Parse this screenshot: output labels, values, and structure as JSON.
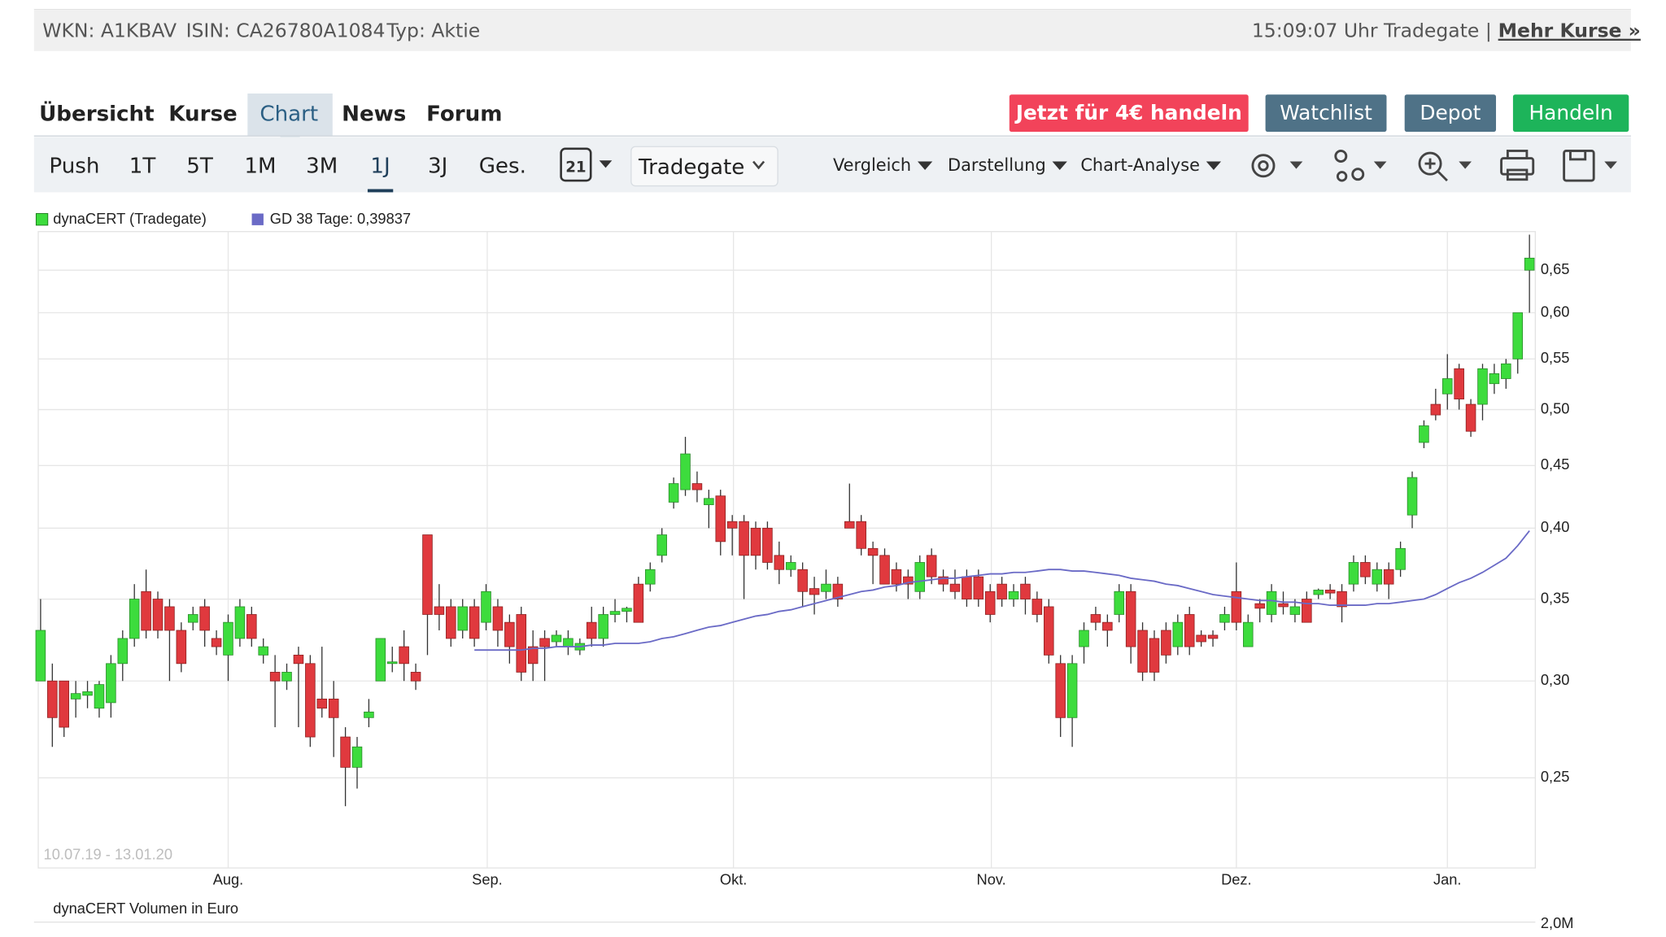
{
  "header": {
    "wkn": "WKN: A1KBAV",
    "isin": "ISIN: CA26780A1084",
    "type": "Typ: Aktie",
    "time": "15:09:07 Uhr Tradegate |",
    "more": "Mehr Kurse »"
  },
  "tabs": [
    "Übersicht",
    "Kurse",
    "Chart",
    "News",
    "Forum"
  ],
  "actions": [
    "Jetzt für 4€ handeln",
    "Watchlist",
    "Depot",
    "Handeln"
  ],
  "periods": [
    "Push",
    "1T",
    "5T",
    "1M",
    "3M",
    "1J",
    "3J",
    "Ges."
  ],
  "calendar": "21",
  "exchange": "Tradegate",
  "menus": [
    "Vergleich",
    "Darstellung",
    "Chart-Analyse"
  ],
  "chart": {
    "type": "candlestick",
    "log_scale": true,
    "grid": true,
    "legend": [
      "dynaCERT (Tradegate)",
      "GD 38 Tage: 0,39837"
    ],
    "range": "10.07.19 - 13.01.20",
    "ylim": [
      0.211,
      0.699
    ],
    "yticks": [
      {
        "value": 0.25,
        "label": "0,25"
      },
      {
        "value": 0.3,
        "label": "0,30"
      },
      {
        "value": 0.35,
        "label": "0,35"
      },
      {
        "value": 0.4,
        "label": "0,40"
      },
      {
        "value": 0.45,
        "label": "0,45"
      },
      {
        "value": 0.5,
        "label": "0,50"
      },
      {
        "value": 0.55,
        "label": "0,55"
      },
      {
        "value": 0.6,
        "label": "0,60"
      },
      {
        "value": 0.65,
        "label": "0,65"
      }
    ],
    "xlim": [
      -0.2,
      127.5
    ],
    "xticks": [
      {
        "value": 16,
        "label": "Aug."
      },
      {
        "value": 38.1,
        "label": "Sep."
      },
      {
        "value": 59.1,
        "label": "Okt."
      },
      {
        "value": 81.1,
        "label": "Nov."
      },
      {
        "value": 102,
        "label": "Dez."
      },
      {
        "value": 120,
        "label": "Jan."
      }
    ],
    "up_color": "#3ddc3d",
    "down_color": "#e0393e",
    "candles": [
      [
        0.3,
        0.35,
        0.3,
        0.33
      ],
      [
        0.3,
        0.31,
        0.265,
        0.28
      ],
      [
        0.3,
        0.3,
        0.27,
        0.275
      ],
      [
        0.29,
        0.3,
        0.28,
        0.293
      ],
      [
        0.292,
        0.3,
        0.285,
        0.294
      ],
      [
        0.285,
        0.3,
        0.28,
        0.298
      ],
      [
        0.288,
        0.315,
        0.28,
        0.31
      ],
      [
        0.31,
        0.33,
        0.3,
        0.325
      ],
      [
        0.325,
        0.36,
        0.32,
        0.35
      ],
      [
        0.355,
        0.37,
        0.325,
        0.33
      ],
      [
        0.35,
        0.355,
        0.325,
        0.33
      ],
      [
        0.345,
        0.35,
        0.3,
        0.33
      ],
      [
        0.33,
        0.335,
        0.305,
        0.31
      ],
      [
        0.335,
        0.345,
        0.33,
        0.34
      ],
      [
        0.345,
        0.35,
        0.32,
        0.33
      ],
      [
        0.325,
        0.33,
        0.315,
        0.32
      ],
      [
        0.315,
        0.34,
        0.3,
        0.335
      ],
      [
        0.325,
        0.35,
        0.32,
        0.345
      ],
      [
        0.34,
        0.345,
        0.32,
        0.325
      ],
      [
        0.315,
        0.325,
        0.31,
        0.32
      ],
      [
        0.305,
        0.315,
        0.275,
        0.3
      ],
      [
        0.3,
        0.31,
        0.295,
        0.305
      ],
      [
        0.315,
        0.32,
        0.275,
        0.31
      ],
      [
        0.31,
        0.315,
        0.265,
        0.27
      ],
      [
        0.29,
        0.32,
        0.28,
        0.285
      ],
      [
        0.29,
        0.3,
        0.26,
        0.28
      ],
      [
        0.27,
        0.275,
        0.237,
        0.255
      ],
      [
        0.255,
        0.27,
        0.245,
        0.265
      ],
      [
        0.28,
        0.29,
        0.275,
        0.283
      ],
      [
        0.3,
        0.325,
        0.3,
        0.325
      ],
      [
        0.31,
        0.32,
        0.305,
        0.311
      ],
      [
        0.32,
        0.33,
        0.3,
        0.31
      ],
      [
        0.305,
        0.31,
        0.295,
        0.3
      ],
      [
        0.395,
        0.395,
        0.315,
        0.34
      ],
      [
        0.345,
        0.36,
        0.33,
        0.34
      ],
      [
        0.345,
        0.35,
        0.32,
        0.325
      ],
      [
        0.33,
        0.35,
        0.325,
        0.345
      ],
      [
        0.345,
        0.35,
        0.32,
        0.325
      ],
      [
        0.335,
        0.36,
        0.33,
        0.355
      ],
      [
        0.345,
        0.35,
        0.32,
        0.33
      ],
      [
        0.335,
        0.34,
        0.31,
        0.32
      ],
      [
        0.34,
        0.345,
        0.3,
        0.305
      ],
      [
        0.32,
        0.33,
        0.3,
        0.31
      ],
      [
        0.325,
        0.33,
        0.3,
        0.32
      ],
      [
        0.323,
        0.33,
        0.32,
        0.327
      ],
      [
        0.32,
        0.33,
        0.315,
        0.325
      ],
      [
        0.318,
        0.325,
        0.315,
        0.322
      ],
      [
        0.335,
        0.345,
        0.32,
        0.325
      ],
      [
        0.325,
        0.345,
        0.32,
        0.34
      ],
      [
        0.34,
        0.35,
        0.335,
        0.342
      ],
      [
        0.342,
        0.345,
        0.335,
        0.344
      ],
      [
        0.36,
        0.365,
        0.335,
        0.335
      ],
      [
        0.36,
        0.375,
        0.355,
        0.37
      ],
      [
        0.38,
        0.4,
        0.375,
        0.395
      ],
      [
        0.42,
        0.44,
        0.415,
        0.435
      ],
      [
        0.43,
        0.475,
        0.425,
        0.46
      ],
      [
        0.435,
        0.445,
        0.42,
        0.43
      ],
      [
        0.418,
        0.43,
        0.4,
        0.423
      ],
      [
        0.425,
        0.43,
        0.38,
        0.39
      ],
      [
        0.405,
        0.41,
        0.38,
        0.4
      ],
      [
        0.405,
        0.41,
        0.35,
        0.38
      ],
      [
        0.4,
        0.405,
        0.37,
        0.38
      ],
      [
        0.4,
        0.405,
        0.37,
        0.375
      ],
      [
        0.38,
        0.39,
        0.36,
        0.37
      ],
      [
        0.37,
        0.38,
        0.365,
        0.375
      ],
      [
        0.37,
        0.375,
        0.345,
        0.355
      ],
      [
        0.357,
        0.365,
        0.34,
        0.353
      ],
      [
        0.355,
        0.37,
        0.35,
        0.36
      ],
      [
        0.36,
        0.365,
        0.345,
        0.35
      ],
      [
        0.405,
        0.435,
        0.4,
        0.4
      ],
      [
        0.405,
        0.41,
        0.38,
        0.385
      ],
      [
        0.385,
        0.39,
        0.36,
        0.38
      ],
      [
        0.38,
        0.385,
        0.36,
        0.36
      ],
      [
        0.37,
        0.375,
        0.355,
        0.36
      ],
      [
        0.365,
        0.37,
        0.35,
        0.36
      ],
      [
        0.355,
        0.38,
        0.35,
        0.375
      ],
      [
        0.38,
        0.385,
        0.36,
        0.365
      ],
      [
        0.365,
        0.37,
        0.355,
        0.36
      ],
      [
        0.36,
        0.37,
        0.35,
        0.355
      ],
      [
        0.365,
        0.37,
        0.345,
        0.35
      ],
      [
        0.365,
        0.37,
        0.345,
        0.35
      ],
      [
        0.355,
        0.36,
        0.335,
        0.34
      ],
      [
        0.36,
        0.365,
        0.345,
        0.35
      ],
      [
        0.35,
        0.36,
        0.345,
        0.355
      ],
      [
        0.36,
        0.365,
        0.34,
        0.35
      ],
      [
        0.35,
        0.355,
        0.335,
        0.34
      ],
      [
        0.345,
        0.35,
        0.31,
        0.315
      ],
      [
        0.31,
        0.315,
        0.27,
        0.28
      ],
      [
        0.28,
        0.315,
        0.265,
        0.31
      ],
      [
        0.32,
        0.335,
        0.31,
        0.33
      ],
      [
        0.34,
        0.345,
        0.33,
        0.335
      ],
      [
        0.335,
        0.34,
        0.32,
        0.33
      ],
      [
        0.34,
        0.36,
        0.335,
        0.355
      ],
      [
        0.355,
        0.36,
        0.31,
        0.32
      ],
      [
        0.33,
        0.335,
        0.3,
        0.305
      ],
      [
        0.325,
        0.33,
        0.3,
        0.305
      ],
      [
        0.33,
        0.335,
        0.31,
        0.315
      ],
      [
        0.32,
        0.34,
        0.315,
        0.335
      ],
      [
        0.34,
        0.345,
        0.315,
        0.32
      ],
      [
        0.327,
        0.33,
        0.32,
        0.323
      ],
      [
        0.327,
        0.33,
        0.32,
        0.325
      ],
      [
        0.335,
        0.345,
        0.33,
        0.34
      ],
      [
        0.355,
        0.375,
        0.33,
        0.335
      ],
      [
        0.32,
        0.34,
        0.32,
        0.335
      ],
      [
        0.347,
        0.35,
        0.335,
        0.344
      ],
      [
        0.34,
        0.36,
        0.335,
        0.355
      ],
      [
        0.347,
        0.355,
        0.34,
        0.345
      ],
      [
        0.34,
        0.35,
        0.335,
        0.345
      ],
      [
        0.35,
        0.355,
        0.335,
        0.335
      ],
      [
        0.353,
        0.357,
        0.35,
        0.356
      ],
      [
        0.356,
        0.36,
        0.35,
        0.354
      ],
      [
        0.355,
        0.36,
        0.335,
        0.345
      ],
      [
        0.36,
        0.38,
        0.355,
        0.375
      ],
      [
        0.375,
        0.38,
        0.36,
        0.365
      ],
      [
        0.36,
        0.375,
        0.355,
        0.37
      ],
      [
        0.37,
        0.375,
        0.35,
        0.36
      ],
      [
        0.37,
        0.39,
        0.365,
        0.385
      ],
      [
        0.41,
        0.445,
        0.4,
        0.44
      ],
      [
        0.47,
        0.49,
        0.465,
        0.485
      ],
      [
        0.505,
        0.52,
        0.49,
        0.495
      ],
      [
        0.515,
        0.555,
        0.5,
        0.53
      ],
      [
        0.54,
        0.545,
        0.5,
        0.51
      ],
      [
        0.505,
        0.51,
        0.475,
        0.48
      ],
      [
        0.505,
        0.545,
        0.49,
        0.54
      ],
      [
        0.525,
        0.545,
        0.515,
        0.535
      ],
      [
        0.53,
        0.55,
        0.52,
        0.545
      ],
      [
        0.55,
        0.6,
        0.535,
        0.6
      ],
      [
        0.65,
        0.695,
        0.6,
        0.665
      ]
    ],
    "ma": {
      "color": "#6a6ac6",
      "values": [
        null,
        null,
        null,
        null,
        null,
        null,
        null,
        null,
        null,
        null,
        null,
        null,
        null,
        null,
        null,
        null,
        null,
        null,
        null,
        null,
        null,
        null,
        null,
        null,
        null,
        null,
        null,
        null,
        null,
        null,
        null,
        null,
        null,
        null,
        null,
        null,
        null,
        0.318,
        0.318,
        0.318,
        0.318,
        0.318,
        0.319,
        0.319,
        0.32,
        0.32,
        0.32,
        0.321,
        0.321,
        0.322,
        0.322,
        0.322,
        0.323,
        0.325,
        0.326,
        0.328,
        0.33,
        0.332,
        0.333,
        0.335,
        0.337,
        0.339,
        0.34,
        0.342,
        0.343,
        0.345,
        0.347,
        0.349,
        0.351,
        0.353,
        0.355,
        0.356,
        0.358,
        0.359,
        0.361,
        0.362,
        0.363,
        0.364,
        0.364,
        0.365,
        0.366,
        0.367,
        0.367,
        0.368,
        0.368,
        0.369,
        0.37,
        0.37,
        0.369,
        0.369,
        0.368,
        0.367,
        0.366,
        0.364,
        0.363,
        0.362,
        0.36,
        0.359,
        0.357,
        0.355,
        0.353,
        0.352,
        0.351,
        0.35,
        0.349,
        0.349,
        0.348,
        0.348,
        0.347,
        0.347,
        0.346,
        0.346,
        0.346,
        0.346,
        0.347,
        0.347,
        0.348,
        0.349,
        0.35,
        0.353,
        0.357,
        0.361,
        0.364,
        0.368,
        0.373,
        0.378,
        0.387,
        0.398
      ]
    },
    "volume_label": "dynaCERT Volumen in Euro",
    "volume_tick": "2,0M"
  }
}
